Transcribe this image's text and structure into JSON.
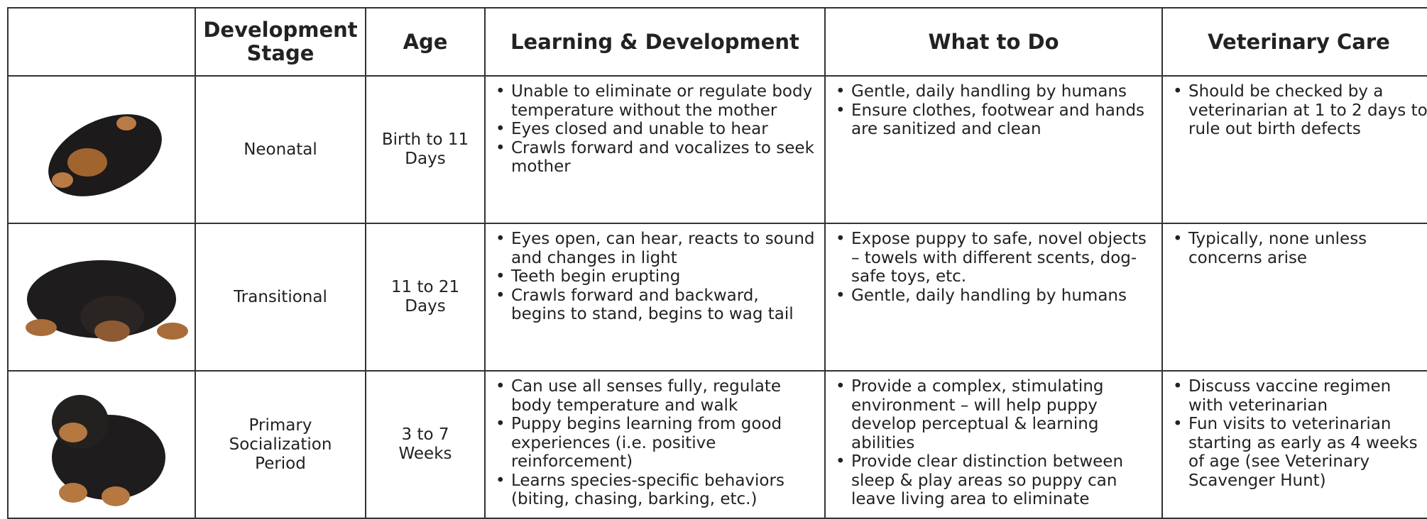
{
  "table": {
    "header": [
      "Development Stage",
      "Age",
      "Learning & Development",
      "What to Do",
      "Veterinary Care"
    ],
    "rows": [
      {
        "stage": "Neonatal",
        "age": "Birth to 11 Days",
        "learning": [
          "Unable to eliminate or regulate body temperature without the mother",
          "Eyes closed and unable to hear",
          "Crawls forward and vocalizes to seek mother"
        ],
        "todo": [
          "Gentle, daily handling by humans",
          "Ensure clothes, footwear and hands are sanitized and clean"
        ],
        "vet": [
          "Should be checked by a veterinarian at 1 to 2 days to rule out birth defects"
        ]
      },
      {
        "stage": "Transitional",
        "age": "11 to 21 Days",
        "learning": [
          "Eyes open, can hear, reacts to sound and changes in light",
          "Teeth begin erupting",
          "Crawls forward and backward, begins to stand, begins to wag tail"
        ],
        "todo": [
          "Expose puppy to safe, novel objects – towels with different scents, dog-safe toys, etc.",
          "Gentle, daily handling by humans"
        ],
        "vet": [
          "Typically, none unless concerns arise"
        ]
      },
      {
        "stage": "Primary Socialization Period",
        "age": "3 to 7 Weeks",
        "learning": [
          "Can use all senses fully, regulate body temperature and walk",
          "Puppy begins learning from good experiences (i.e. positive reinforcement)",
          "Learns species-specific behaviors (biting, chasing, barking, etc.)"
        ],
        "todo": [
          "Provide a complex, stimulating environment – will help puppy develop perceptual & learning abilities",
          "Provide clear distinction between sleep & play areas so puppy can leave living area to eliminate"
        ],
        "vet": [
          "Discuss vaccine regimen with veterinarian",
          "Fun visits to veterinarian starting as early as 4 weeks of age (see Veterinary Scavenger Hunt)"
        ]
      }
    ]
  }
}
